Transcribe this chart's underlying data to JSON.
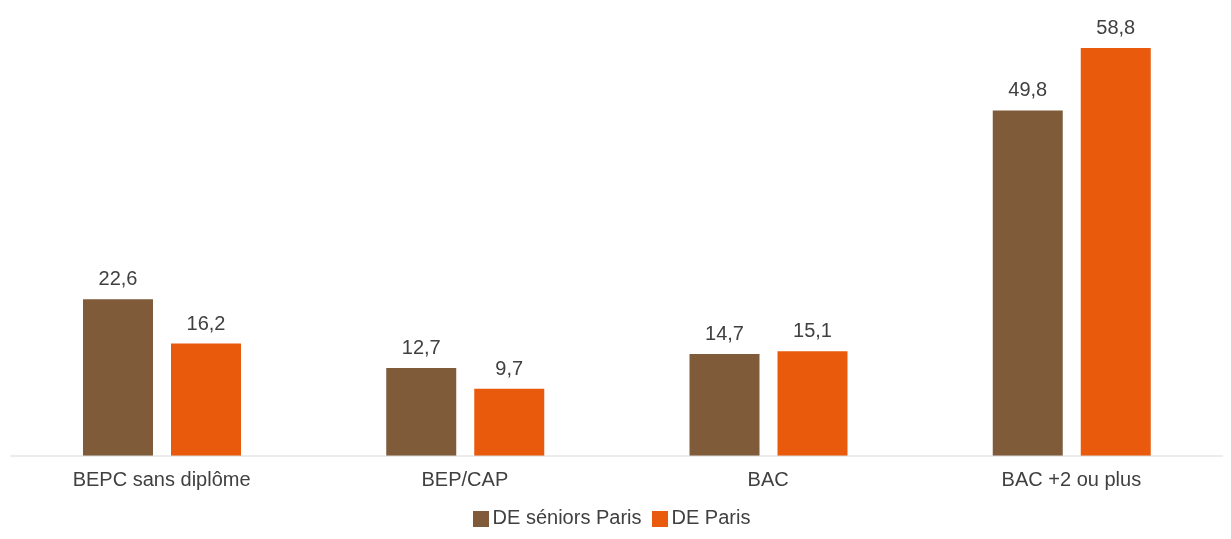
{
  "chart_data": {
    "type": "bar",
    "categories": [
      "BEPC sans diplôme",
      "BEP/CAP",
      "BAC",
      "BAC +2 ou plus"
    ],
    "series": [
      {
        "name": "DE séniors Paris",
        "color": "#7f5b3a",
        "values": [
          22.6,
          12.7,
          14.7,
          49.8
        ],
        "value_labels": [
          "22,6",
          "12,7",
          "14,7",
          "49,8"
        ]
      },
      {
        "name": "DE Paris",
        "color": "#e95a0c",
        "values": [
          16.2,
          9.7,
          15.1,
          58.8
        ],
        "value_labels": [
          "16,2",
          "9,7",
          "15,1",
          "58,8"
        ]
      }
    ],
    "legend": "bottom",
    "grid": false
  }
}
